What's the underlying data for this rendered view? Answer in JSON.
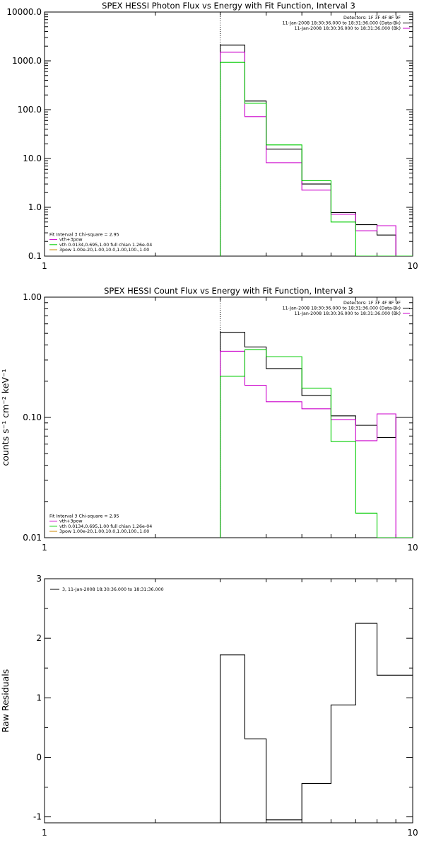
{
  "chart_data": [
    {
      "type": "line",
      "step": true,
      "title": "SPEX HESSI Photon Flux vs Energy with Fit Function, Interval 3",
      "xlabel": "",
      "ylabel": "",
      "xscale": "log",
      "yscale": "log",
      "xlim": [
        1,
        10
      ],
      "ylim": [
        0.1,
        10000
      ],
      "x_tick_labels": [
        "1",
        "10"
      ],
      "y_tick_labels": [
        "0.1",
        "1.0",
        "10.0",
        "100.0",
        "1000.0",
        "10000.0"
      ],
      "y_tick_values": [
        0.1,
        1,
        10,
        100,
        1000,
        10000
      ],
      "grid": false,
      "vline_x": 3.0,
      "bin_edges": [
        3.0,
        3.5,
        4.0,
        5.0,
        6.0,
        7.0,
        8.0,
        9.0,
        10.0
      ],
      "series": [
        {
          "name": "",
          "color": "#000000",
          "values": [
            2100,
            150,
            15.5,
            3.0,
            0.78,
            0.44,
            0.27,
            0.1
          ]
        },
        {
          "name": "vth+3pow",
          "color": "#cc00cc",
          "values": [
            1500,
            72,
            8.2,
            2.25,
            0.72,
            0.33,
            0.42,
            0.1
          ]
        },
        {
          "name": "vth 0.0134,0.695,1.00  full chian 1.26e-04",
          "color": "#00cc00",
          "values": [
            930,
            135,
            19.0,
            3.5,
            0.5,
            0.1,
            0.1,
            0.1
          ]
        }
      ],
      "legend_top_right": [
        "Detectors: 1F 3F 4F 8F 9F",
        "11-Jan-2008 18:30:36.000 to 18:31:36.000 (Data-Bk)",
        "11-Jan-2008 18:30:36.000 to 18:31:36.000 (Bk)"
      ],
      "legend_bottom_left": [
        "Fit Interval 3   Chi-square = 2.95",
        "vth+3pow",
        "vth 0.0134,0.695,1.00  full chian 1.26e-04",
        "3pow  1.00e-20,1.00,10.0,1.00,100.,1.00"
      ]
    },
    {
      "type": "line",
      "step": true,
      "title": "SPEX HESSI Count Flux vs Energy with Fit Function, Interval 3",
      "xlabel": "",
      "ylabel": "counts s⁻¹ cm⁻² keV⁻¹",
      "xscale": "log",
      "yscale": "log",
      "xlim": [
        1,
        10
      ],
      "ylim": [
        0.01,
        1.0
      ],
      "x_tick_labels": [
        "1",
        "10"
      ],
      "y_tick_labels": [
        "0.01",
        "0.10",
        "1.00"
      ],
      "y_tick_values": [
        0.01,
        0.1,
        1.0
      ],
      "grid": false,
      "vline_x": 3.0,
      "bin_edges": [
        3.0,
        3.5,
        4.0,
        5.0,
        6.0,
        7.0,
        8.0,
        9.0,
        10.0
      ],
      "series": [
        {
          "name": "",
          "color": "#000000",
          "values": [
            0.51,
            0.385,
            0.255,
            0.152,
            0.103,
            0.086,
            0.068,
            0.1
          ]
        },
        {
          "name": "vth+3pow",
          "color": "#cc00cc",
          "values": [
            0.355,
            0.185,
            0.135,
            0.118,
            0.096,
            0.064,
            0.107,
            0.01
          ]
        },
        {
          "name": "vth 0.0134,0.695,1.00  full chian 1.26e-04",
          "color": "#00cc00",
          "values": [
            0.22,
            0.365,
            0.32,
            0.175,
            0.063,
            0.016,
            0.01,
            0.01
          ]
        }
      ],
      "legend_top_right": [
        "Detectors: 1F 3F 4F 8F 9F",
        "11-Jan-2008 18:30:36.000 to 18:31:36.000 (Data-Bk)",
        "11-Jan-2008 18:30:36.000 to 18:31:36.000 (Bk)"
      ],
      "legend_bottom_left": [
        "Fit Interval 3   Chi-square = 2.95",
        "vth+3pow",
        "vth 0.0134,0.695,1.00  full chian 1.26e-04",
        "3pow  1.00e-20,1.00,10.0,1.00,100.,1.00"
      ]
    },
    {
      "type": "line",
      "step": true,
      "title": "",
      "xlabel": "",
      "ylabel": "Raw Residuals",
      "xscale": "log",
      "yscale": "linear",
      "xlim": [
        1,
        10
      ],
      "ylim": [
        -1.1,
        3
      ],
      "x_tick_labels": [
        "1",
        "10"
      ],
      "y_tick_labels": [
        "-1",
        "0",
        "1",
        "2",
        "3"
      ],
      "y_tick_values": [
        -1,
        0,
        1,
        2,
        3
      ],
      "grid": false,
      "bin_edges": [
        3.0,
        3.5,
        4.0,
        5.0,
        6.0,
        7.0,
        8.0,
        9.0,
        10.0
      ],
      "series": [
        {
          "name": "3, 11-Jan-2008 18:30:36.000 to 18:31:36.000",
          "color": "#000000",
          "values": [
            1.72,
            0.31,
            -1.05,
            -0.44,
            0.88,
            2.25,
            1.38,
            1.38
          ]
        }
      ],
      "legend_top_left": [
        "3, 11-Jan-2008 18:30:36.000 to 18:31:36.000"
      ]
    }
  ]
}
